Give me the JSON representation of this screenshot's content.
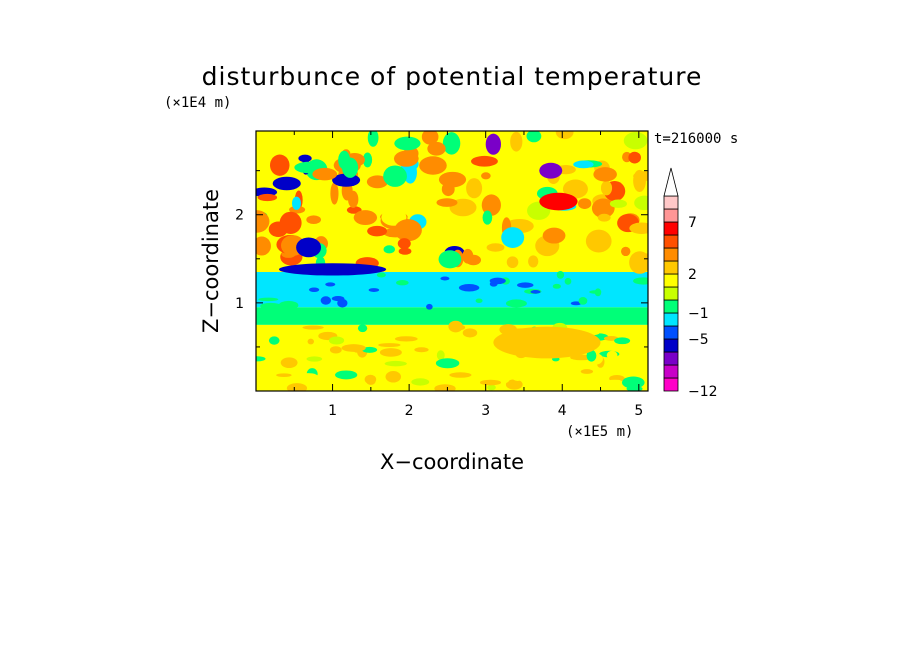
{
  "chart_data": {
    "type": "heatmap",
    "title": "disturbunce of potential temperature",
    "time_label": "t=216000 s",
    "xlabel": "X−coordinate",
    "ylabel": "Z−coordinate",
    "x_unit": "(×1E5 m)",
    "y_unit": "(×1E4 m)",
    "xlim": [
      0,
      5.12
    ],
    "ylim": [
      0,
      2.95
    ],
    "xticks": [
      {
        "value": 1,
        "label": "1"
      },
      {
        "value": 2,
        "label": "2"
      },
      {
        "value": 3,
        "label": "3"
      },
      {
        "value": 4,
        "label": "4"
      },
      {
        "value": 5,
        "label": "5"
      }
    ],
    "yticks": [
      {
        "value": 1,
        "label": "1"
      },
      {
        "value": 2,
        "label": "2"
      }
    ],
    "colorbar": {
      "levels_bottom_to_top": [
        {
          "color": "#ff00c8"
        },
        {
          "color": "#c800c8"
        },
        {
          "color": "#7a00c8"
        },
        {
          "color": "#0000c8"
        },
        {
          "color": "#0050ff"
        },
        {
          "color": "#00e6ff"
        },
        {
          "color": "#00ff78"
        },
        {
          "color": "#c8ff00"
        },
        {
          "color": "#ffff00"
        },
        {
          "color": "#ffc800"
        },
        {
          "color": "#ff8c00"
        },
        {
          "color": "#ff5000"
        },
        {
          "color": "#ff0000"
        },
        {
          "color": "#ff9696"
        },
        {
          "color": "#ffc8c8"
        }
      ],
      "labels": [
        {
          "boundary_index": 0,
          "text": "−12"
        },
        {
          "boundary_index": 4,
          "text": "−5"
        },
        {
          "boundary_index": 6,
          "text": "−1"
        },
        {
          "boundary_index": 9,
          "text": "2"
        },
        {
          "boundary_index": 13,
          "text": "7"
        }
      ],
      "extend": "max"
    },
    "field_features": [
      {
        "desc": "cyan band",
        "x0": 0,
        "x1": 5.12,
        "y0": 0.95,
        "y1": 1.35,
        "level": 5
      },
      {
        "desc": "green band",
        "x0": 0,
        "x1": 5.12,
        "y0": 0.75,
        "y1": 0.95,
        "level": 6
      },
      {
        "desc": "lower yellow",
        "x0": 0,
        "x1": 5.12,
        "y0": 0.0,
        "y1": 0.75,
        "level": 8
      },
      {
        "desc": "orange patch",
        "cx": 3.8,
        "cy": 0.55,
        "rx": 0.7,
        "ry": 0.18,
        "level": 9
      },
      {
        "desc": "blue streak",
        "cx": 1.0,
        "cy": 1.38,
        "rx": 0.7,
        "ry": 0.07,
        "level": 3
      },
      {
        "desc": "red blob",
        "cx": 3.95,
        "cy": 2.15,
        "rx": 0.25,
        "ry": 0.1,
        "level": 12
      },
      {
        "desc": "purple blob",
        "cx": 3.1,
        "cy": 2.8,
        "rx": 0.1,
        "ry": 0.12,
        "level": 2
      },
      {
        "desc": "purple blob right",
        "cx": 3.85,
        "cy": 2.5,
        "rx": 0.15,
        "ry": 0.09,
        "level": 2
      }
    ]
  }
}
